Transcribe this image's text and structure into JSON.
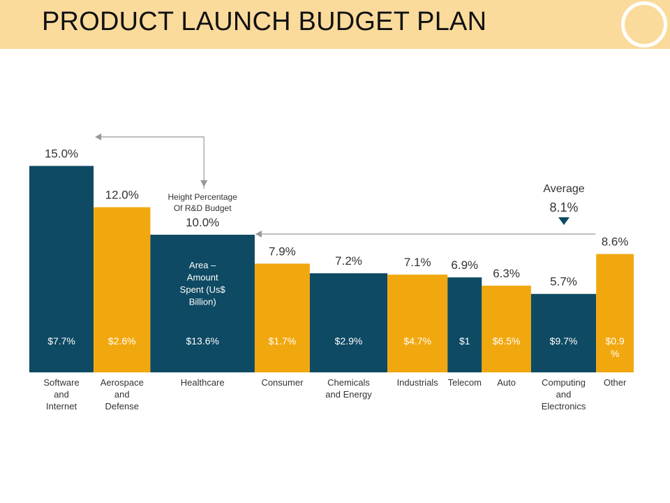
{
  "header": {
    "title": "PRODUCT LAUNCH BUDGET PLAN"
  },
  "colors": {
    "header_bg": "#fadb9c",
    "bar_dark": "#0e4a63",
    "bar_gold": "#f1a80f",
    "text": "#333333",
    "arrow": "#999999"
  },
  "chart_data": {
    "type": "bar",
    "variant": "variable-width (mekko) bar chart",
    "title": "PRODUCT LAUNCH BUDGET PLAN",
    "height_measure": "Height Percentage Of R&D Budget",
    "width_measure": "Area – Amount Spent (Us$ Billion)",
    "area_label_lines": [
      "Area –",
      "Amount",
      "Spent (Us$",
      "Billion)"
    ],
    "height_label_lines": [
      "Height Percentage",
      "Of R&D Budget"
    ],
    "average": {
      "label": "Average",
      "value": 8.1,
      "value_label": "8.1%"
    },
    "categories": [
      {
        "label_lines": [
          "Software",
          "and",
          "Internet"
        ],
        "height": 15.0,
        "height_label": "15.0%",
        "spend_label_lines": [
          "$7.7%"
        ],
        "width_units": 7.7,
        "color": "dark"
      },
      {
        "label_lines": [
          "Aerospace",
          "and",
          "Defense"
        ],
        "height": 12.0,
        "height_label": "12.0%",
        "spend_label_lines": [
          "$2.6%"
        ],
        "width_units": 6.8,
        "color": "gold"
      },
      {
        "label_lines": [
          "Healthcare"
        ],
        "height": 10.0,
        "height_label": "10.0%",
        "spend_label_lines": [
          "$13.6%"
        ],
        "width_units": 12.5,
        "color": "dark"
      },
      {
        "label_lines": [
          "Consumer"
        ],
        "height": 7.9,
        "height_label": "7.9%",
        "spend_label_lines": [
          "$1.7%"
        ],
        "width_units": 6.6,
        "color": "gold"
      },
      {
        "label_lines": [
          "Chemicals",
          "and Energy"
        ],
        "height": 7.2,
        "height_label": "7.2%",
        "spend_label_lines": [
          "$2.9%"
        ],
        "width_units": 9.3,
        "color": "dark"
      },
      {
        "label_lines": [
          "Industrials"
        ],
        "height": 7.1,
        "height_label": "7.1%",
        "spend_label_lines": [
          "$4.7%"
        ],
        "width_units": 7.2,
        "color": "gold"
      },
      {
        "label_lines": [
          "Telecom"
        ],
        "height": 6.9,
        "height_label": "6.9%",
        "spend_label_lines": [
          "$1"
        ],
        "width_units": 4.1,
        "color": "dark"
      },
      {
        "label_lines": [
          "Auto"
        ],
        "height": 6.3,
        "height_label": "6.3%",
        "spend_label_lines": [
          "$6.5%"
        ],
        "width_units": 5.9,
        "color": "gold"
      },
      {
        "label_lines": [
          "Computing",
          "and",
          "Electronics"
        ],
        "height": 5.7,
        "height_label": "5.7%",
        "spend_label_lines": [
          "$9.7%"
        ],
        "width_units": 7.8,
        "color": "dark"
      },
      {
        "label_lines": [
          "Other"
        ],
        "height": 8.6,
        "height_label": "8.6%",
        "spend_label_lines": [
          "$0.9",
          "%"
        ],
        "width_units": 4.5,
        "color": "gold"
      }
    ]
  }
}
